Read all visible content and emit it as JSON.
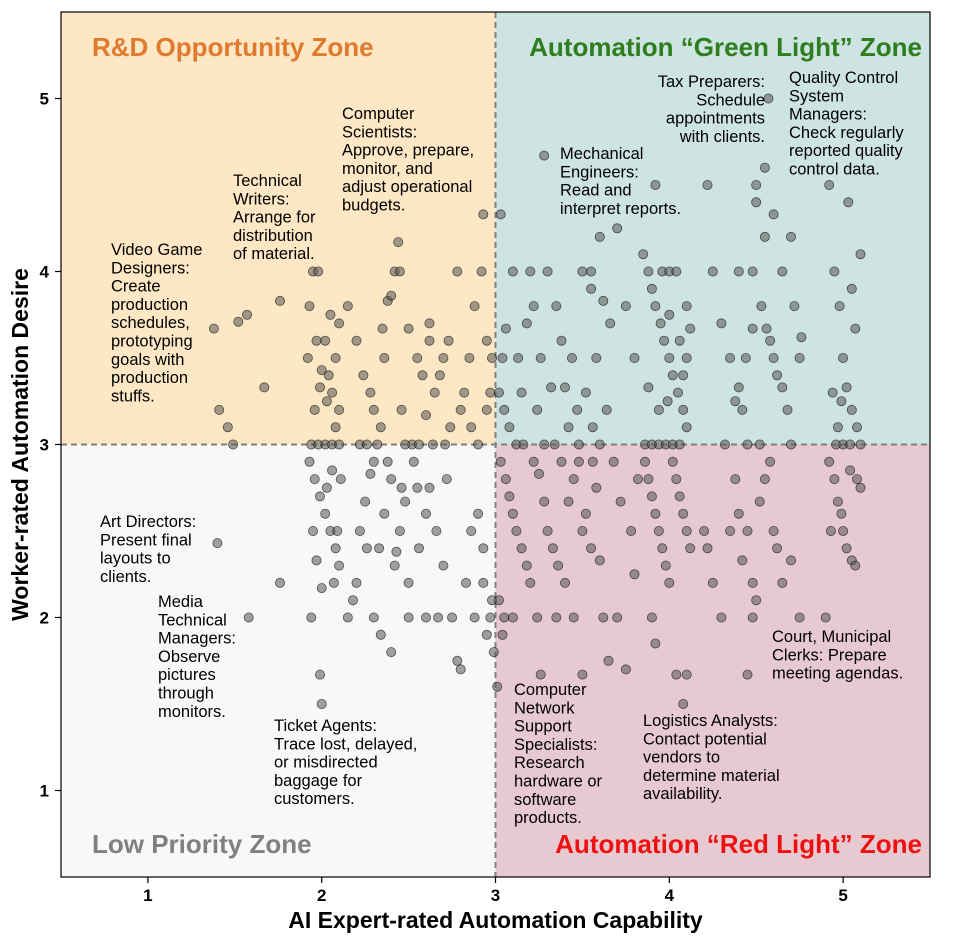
{
  "chart_data": {
    "type": "scatter",
    "xlabel": "AI Expert-rated Automation Capability",
    "ylabel": "Worker-rated Automation Desire",
    "xlim": [
      0.5,
      5.5
    ],
    "ylim": [
      0.5,
      5.5
    ],
    "xticks": [
      "1",
      "2",
      "3",
      "4",
      "5"
    ],
    "yticks": [
      "1",
      "2",
      "3",
      "4",
      "5"
    ],
    "threshold_x": 3,
    "threshold_y": 3,
    "grid": false,
    "legend": "none",
    "marker_color": "#555555",
    "zones": [
      {
        "id": "rd",
        "label": "R&D Opportunity Zone",
        "quadrant": "top-left",
        "fill": "#fde7c4",
        "text_color": "#e07a2e"
      },
      {
        "id": "green",
        "label": "Automation “Green Light” Zone",
        "quadrant": "top-right",
        "fill": "#cde4e2",
        "text_color": "#2e7d1e"
      },
      {
        "id": "low",
        "label": "Low Priority Zone",
        "quadrant": "bottom-left",
        "fill": "#f8f8f8",
        "text_color": "#808080"
      },
      {
        "id": "red",
        "label": "Automation “Red Light” Zone",
        "quadrant": "bottom-right",
        "fill": "#e7cad1",
        "text_color": "#ee1111"
      }
    ],
    "annotations": [
      {
        "id": "video-game",
        "lines": [
          "Video Game",
          "Designers:",
          "Create",
          "production",
          "schedules,",
          "prototyping",
          "goals with",
          "production",
          "stuffs."
        ]
      },
      {
        "id": "tech-writers",
        "lines": [
          "Technical",
          "Writers:",
          "Arrange for",
          "distribution",
          "of material."
        ]
      },
      {
        "id": "comp-sci",
        "lines": [
          "Computer",
          "Scientists:",
          "Approve, prepare,",
          "monitor, and",
          "adjust operational",
          "budgets."
        ]
      },
      {
        "id": "mech-eng",
        "lines": [
          "Mechanical",
          "Engineers:",
          "Read and",
          "interpret reports."
        ]
      },
      {
        "id": "tax-prep",
        "lines": [
          "Tax Preparers:",
          "Schedule",
          "appointments",
          "with clients."
        ]
      },
      {
        "id": "qc-managers",
        "lines": [
          "Quality Control",
          "System",
          "Managers:",
          "Check regularly",
          "reported quality",
          "control data."
        ]
      },
      {
        "id": "art-directors",
        "lines": [
          "Art Directors:",
          "Present final",
          "layouts to",
          "clients."
        ]
      },
      {
        "id": "media-tech",
        "lines": [
          "Media",
          "Technical",
          "Managers:",
          "Observe",
          "pictures",
          "through",
          "monitors."
        ]
      },
      {
        "id": "ticket-agents",
        "lines": [
          "Ticket Agents:",
          "Trace lost, delayed,",
          "or misdirected",
          "baggage for",
          "customers."
        ]
      },
      {
        "id": "network-support",
        "lines": [
          "Computer",
          "Network",
          "Support",
          "Specialists:",
          "Research",
          "hardware or",
          "software",
          "products."
        ]
      },
      {
        "id": "logistics",
        "lines": [
          "Logistics Analysts:",
          "Contact potential",
          "vendors to",
          "determine material",
          "availability."
        ]
      },
      {
        "id": "court-clerks",
        "lines": [
          "Court, Municipal",
          "Clerks: Prepare",
          "meeting agendas."
        ]
      }
    ],
    "points": [
      [
        1.38,
        3.67
      ],
      [
        1.41,
        3.2
      ],
      [
        1.46,
        3.1
      ],
      [
        1.49,
        3.0
      ],
      [
        1.52,
        3.71
      ],
      [
        1.57,
        3.75
      ],
      [
        1.67,
        3.33
      ],
      [
        1.76,
        3.83
      ],
      [
        1.4,
        2.43
      ],
      [
        1.58,
        2.0
      ],
      [
        1.76,
        2.2
      ],
      [
        1.99,
        1.67
      ],
      [
        2.0,
        1.5
      ],
      [
        1.93,
        3.8
      ],
      [
        1.95,
        4.0
      ],
      [
        1.98,
        4.0
      ],
      [
        1.97,
        3.6
      ],
      [
        2.02,
        3.6
      ],
      [
        2.05,
        3.75
      ],
      [
        2.08,
        3.5
      ],
      [
        2.1,
        3.7
      ],
      [
        2.04,
        3.4
      ],
      [
        2.06,
        3.3
      ],
      [
        1.96,
        3.2
      ],
      [
        2.1,
        3.2
      ],
      [
        1.94,
        3.0
      ],
      [
        1.98,
        3.0
      ],
      [
        2.02,
        3.0
      ],
      [
        2.06,
        3.0
      ],
      [
        2.1,
        3.0
      ],
      [
        2.0,
        3.43
      ],
      [
        1.92,
        3.5
      ],
      [
        2.03,
        3.25
      ],
      [
        1.99,
        3.33
      ],
      [
        2.08,
        3.1
      ],
      [
        2.2,
        3.6
      ],
      [
        2.24,
        3.4
      ],
      [
        2.28,
        3.3
      ],
      [
        2.32,
        3.0
      ],
      [
        2.35,
        3.67
      ],
      [
        2.38,
        3.83
      ],
      [
        2.4,
        3.86
      ],
      [
        2.42,
        4.0
      ],
      [
        2.45,
        4.0
      ],
      [
        2.44,
        4.17
      ],
      [
        2.5,
        3.67
      ],
      [
        2.55,
        3.5
      ],
      [
        2.58,
        3.4
      ],
      [
        2.62,
        3.7
      ],
      [
        2.65,
        3.3
      ],
      [
        2.7,
        3.5
      ],
      [
        2.73,
        3.6
      ],
      [
        2.78,
        4.0
      ],
      [
        2.82,
        3.3
      ],
      [
        2.86,
        3.1
      ],
      [
        2.9,
        3.0
      ],
      [
        2.22,
        3.0
      ],
      [
        2.26,
        3.0
      ],
      [
        2.3,
        3.2
      ],
      [
        2.36,
        3.5
      ],
      [
        2.46,
        3.2
      ],
      [
        2.52,
        3.0
      ],
      [
        2.6,
        3.17
      ],
      [
        2.64,
        3.0
      ],
      [
        2.68,
        3.4
      ],
      [
        2.74,
        3.1
      ],
      [
        2.8,
        3.2
      ],
      [
        2.85,
        3.5
      ],
      [
        2.88,
        3.8
      ],
      [
        2.92,
        4.0
      ],
      [
        2.95,
        3.6
      ],
      [
        2.97,
        3.3
      ],
      [
        2.93,
        4.33
      ],
      [
        2.95,
        3.2
      ],
      [
        2.98,
        3.5
      ],
      [
        2.15,
        3.8
      ],
      [
        2.48,
        3.0
      ],
      [
        2.56,
        3.0
      ],
      [
        2.62,
        3.6
      ],
      [
        2.71,
        3.0
      ],
      [
        2.34,
        3.1
      ],
      [
        1.93,
        2.9
      ],
      [
        1.96,
        2.8
      ],
      [
        1.99,
        2.7
      ],
      [
        2.02,
        2.6
      ],
      [
        2.05,
        2.5
      ],
      [
        2.08,
        2.4
      ],
      [
        2.1,
        2.3
      ],
      [
        1.95,
        2.5
      ],
      [
        1.97,
        2.33
      ],
      [
        2.03,
        2.75
      ],
      [
        2.07,
        2.2
      ],
      [
        1.94,
        2.0
      ],
      [
        2.0,
        2.17
      ],
      [
        2.06,
        2.85
      ],
      [
        2.09,
        2.5
      ],
      [
        2.11,
        2.8
      ],
      [
        2.15,
        2.0
      ],
      [
        2.2,
        2.2
      ],
      [
        2.22,
        2.5
      ],
      [
        2.25,
        2.67
      ],
      [
        2.28,
        2.83
      ],
      [
        2.3,
        2.9
      ],
      [
        2.33,
        2.4
      ],
      [
        2.36,
        2.6
      ],
      [
        2.4,
        2.8
      ],
      [
        2.42,
        2.3
      ],
      [
        2.45,
        2.5
      ],
      [
        2.48,
        2.67
      ],
      [
        2.5,
        2.2
      ],
      [
        2.53,
        2.9
      ],
      [
        2.56,
        2.4
      ],
      [
        2.6,
        2.6
      ],
      [
        2.62,
        2.75
      ],
      [
        2.66,
        2.5
      ],
      [
        2.7,
        2.3
      ],
      [
        2.72,
        2.8
      ],
      [
        2.75,
        2.0
      ],
      [
        2.78,
        1.75
      ],
      [
        2.8,
        1.7
      ],
      [
        2.83,
        2.2
      ],
      [
        2.86,
        2.5
      ],
      [
        2.9,
        2.6
      ],
      [
        2.93,
        2.4
      ],
      [
        2.95,
        1.9
      ],
      [
        2.97,
        2.0
      ],
      [
        2.98,
        2.1
      ],
      [
        2.99,
        1.8
      ],
      [
        2.4,
        1.8
      ],
      [
        2.3,
        2.0
      ],
      [
        2.5,
        2.0
      ],
      [
        2.6,
        2.0
      ],
      [
        2.46,
        2.75
      ],
      [
        2.38,
        2.9
      ],
      [
        2.26,
        2.4
      ],
      [
        2.18,
        2.1
      ],
      [
        2.34,
        1.9
      ],
      [
        2.55,
        2.75
      ],
      [
        2.67,
        2.0
      ],
      [
        2.88,
        2.0
      ],
      [
        2.93,
        2.2
      ],
      [
        2.43,
        2.38
      ],
      [
        3.03,
        4.33
      ],
      [
        3.06,
        3.67
      ],
      [
        3.1,
        4.0
      ],
      [
        3.13,
        3.5
      ],
      [
        3.15,
        3.3
      ],
      [
        3.18,
        3.7
      ],
      [
        3.2,
        4.0
      ],
      [
        3.22,
        3.8
      ],
      [
        3.26,
        3.5
      ],
      [
        3.3,
        4.0
      ],
      [
        3.32,
        3.33
      ],
      [
        3.35,
        3.8
      ],
      [
        3.38,
        3.6
      ],
      [
        3.4,
        3.33
      ],
      [
        3.44,
        3.5
      ],
      [
        3.47,
        3.2
      ],
      [
        3.5,
        4.0
      ],
      [
        3.55,
        3.9
      ],
      [
        3.58,
        3.5
      ],
      [
        3.62,
        3.83
      ],
      [
        3.66,
        3.7
      ],
      [
        3.7,
        4.25
      ],
      [
        3.75,
        3.8
      ],
      [
        3.8,
        3.5
      ],
      [
        3.05,
        3.2
      ],
      [
        3.08,
        3.1
      ],
      [
        3.12,
        3.0
      ],
      [
        3.16,
        3.0
      ],
      [
        3.24,
        3.2
      ],
      [
        3.28,
        3.0
      ],
      [
        3.34,
        3.0
      ],
      [
        3.42,
        3.1
      ],
      [
        3.48,
        3.0
      ],
      [
        3.52,
        3.3
      ],
      [
        3.56,
        3.1
      ],
      [
        3.6,
        3.0
      ],
      [
        3.64,
        3.2
      ],
      [
        3.28,
        4.67
      ],
      [
        3.6,
        4.2
      ],
      [
        3.55,
        4.0
      ],
      [
        3.02,
        3.3
      ],
      [
        3.04,
        3.5
      ],
      [
        3.85,
        4.1
      ],
      [
        3.88,
        4.0
      ],
      [
        3.9,
        3.9
      ],
      [
        3.92,
        3.8
      ],
      [
        3.95,
        3.7
      ],
      [
        3.97,
        3.6
      ],
      [
        4.0,
        3.5
      ],
      [
        4.02,
        3.4
      ],
      [
        4.05,
        3.3
      ],
      [
        4.08,
        3.2
      ],
      [
        4.1,
        3.1
      ],
      [
        3.86,
        3.0
      ],
      [
        3.9,
        3.0
      ],
      [
        3.94,
        3.0
      ],
      [
        3.98,
        3.0
      ],
      [
        4.02,
        3.0
      ],
      [
        4.06,
        3.0
      ],
      [
        4.1,
        3.5
      ],
      [
        4.12,
        3.67
      ],
      [
        3.96,
        4.0
      ],
      [
        4.0,
        4.0
      ],
      [
        4.04,
        4.0
      ],
      [
        3.92,
        4.5
      ],
      [
        3.88,
        3.33
      ],
      [
        4.0,
        3.75
      ],
      [
        4.06,
        3.6
      ],
      [
        4.1,
        3.8
      ],
      [
        3.99,
        3.25
      ],
      [
        4.08,
        3.4
      ],
      [
        3.94,
        3.2
      ],
      [
        4.22,
        4.5
      ],
      [
        4.25,
        4.0
      ],
      [
        4.3,
        3.7
      ],
      [
        4.35,
        3.5
      ],
      [
        4.4,
        3.33
      ],
      [
        4.42,
        3.2
      ],
      [
        4.45,
        3.0
      ],
      [
        4.48,
        3.67
      ],
      [
        4.5,
        4.5
      ],
      [
        4.53,
        3.8
      ],
      [
        4.56,
        3.67
      ],
      [
        4.58,
        3.6
      ],
      [
        4.6,
        3.5
      ],
      [
        4.62,
        3.4
      ],
      [
        4.65,
        3.33
      ],
      [
        4.68,
        3.2
      ],
      [
        4.7,
        3.0
      ],
      [
        4.72,
        3.8
      ],
      [
        4.75,
        3.5
      ],
      [
        4.57,
        5.0
      ],
      [
        4.55,
        4.6
      ],
      [
        4.5,
        4.4
      ],
      [
        4.55,
        4.2
      ],
      [
        4.6,
        4.33
      ],
      [
        4.65,
        4.0
      ],
      [
        4.7,
        4.2
      ],
      [
        4.76,
        3.62
      ],
      [
        4.44,
        3.5
      ],
      [
        4.38,
        3.25
      ],
      [
        4.32,
        3.0
      ],
      [
        4.52,
        3.0
      ],
      [
        4.48,
        4.0
      ],
      [
        4.4,
        4.0
      ],
      [
        4.92,
        4.5
      ],
      [
        4.95,
        4.0
      ],
      [
        4.98,
        3.8
      ],
      [
        5.0,
        3.5
      ],
      [
        5.02,
        3.33
      ],
      [
        5.05,
        3.2
      ],
      [
        5.08,
        3.1
      ],
      [
        5.1,
        3.0
      ],
      [
        4.94,
        3.3
      ],
      [
        4.97,
        3.1
      ],
      [
        5.03,
        4.4
      ],
      [
        5.05,
        3.9
      ],
      [
        5.07,
        3.67
      ],
      [
        5.1,
        4.1
      ],
      [
        4.96,
        3.0
      ],
      [
        5.0,
        3.0
      ],
      [
        5.04,
        3.0
      ],
      [
        4.99,
        3.25
      ],
      [
        3.03,
        2.9
      ],
      [
        3.06,
        2.8
      ],
      [
        3.08,
        2.7
      ],
      [
        3.1,
        2.6
      ],
      [
        3.12,
        2.5
      ],
      [
        3.15,
        2.4
      ],
      [
        3.18,
        2.3
      ],
      [
        3.2,
        2.2
      ],
      [
        3.05,
        2.0
      ],
      [
        3.02,
        2.1
      ],
      [
        3.04,
        1.9
      ],
      [
        3.01,
        1.6
      ],
      [
        3.1,
        2.0
      ],
      [
        3.25,
        2.83
      ],
      [
        3.28,
        2.67
      ],
      [
        3.3,
        2.5
      ],
      [
        3.33,
        2.4
      ],
      [
        3.36,
        2.3
      ],
      [
        3.4,
        2.2
      ],
      [
        3.42,
        2.67
      ],
      [
        3.45,
        2.8
      ],
      [
        3.5,
        2.5
      ],
      [
        3.52,
        2.6
      ],
      [
        3.55,
        2.4
      ],
      [
        3.58,
        2.75
      ],
      [
        3.6,
        2.33
      ],
      [
        3.62,
        2.0
      ],
      [
        3.65,
        1.75
      ],
      [
        3.7,
        2.0
      ],
      [
        3.75,
        1.7
      ],
      [
        3.8,
        2.25
      ],
      [
        3.24,
        2.0
      ],
      [
        3.26,
        1.67
      ],
      [
        3.35,
        2.0
      ],
      [
        3.45,
        2.0
      ],
      [
        3.5,
        1.67
      ],
      [
        3.22,
        2.9
      ],
      [
        3.38,
        2.9
      ],
      [
        3.48,
        2.9
      ],
      [
        3.56,
        2.9
      ],
      [
        3.68,
        2.9
      ],
      [
        3.72,
        2.67
      ],
      [
        3.78,
        2.5
      ],
      [
        3.82,
        2.8
      ],
      [
        3.86,
        2.9
      ],
      [
        3.88,
        2.8
      ],
      [
        3.9,
        2.7
      ],
      [
        3.92,
        2.6
      ],
      [
        3.94,
        2.5
      ],
      [
        3.96,
        2.4
      ],
      [
        3.98,
        2.3
      ],
      [
        4.0,
        2.2
      ],
      [
        4.02,
        2.9
      ],
      [
        4.04,
        2.8
      ],
      [
        4.06,
        2.7
      ],
      [
        4.08,
        2.6
      ],
      [
        4.1,
        2.5
      ],
      [
        4.12,
        2.4
      ],
      [
        3.9,
        2.0
      ],
      [
        3.92,
        1.85
      ],
      [
        4.04,
        1.67
      ],
      [
        4.08,
        1.5
      ],
      [
        4.1,
        1.67
      ],
      [
        4.2,
        2.5
      ],
      [
        4.22,
        2.4
      ],
      [
        4.25,
        2.2
      ],
      [
        4.3,
        2.0
      ],
      [
        4.35,
        2.5
      ],
      [
        4.38,
        2.8
      ],
      [
        4.4,
        2.6
      ],
      [
        4.42,
        2.33
      ],
      [
        4.45,
        2.5
      ],
      [
        4.48,
        2.2
      ],
      [
        4.5,
        2.1
      ],
      [
        4.52,
        2.67
      ],
      [
        4.55,
        2.8
      ],
      [
        4.58,
        2.9
      ],
      [
        4.6,
        2.5
      ],
      [
        4.62,
        2.4
      ],
      [
        4.65,
        2.2
      ],
      [
        4.7,
        2.33
      ],
      [
        4.75,
        2.0
      ],
      [
        4.45,
        1.67
      ],
      [
        4.48,
        2.0
      ],
      [
        4.92,
        2.9
      ],
      [
        4.95,
        2.8
      ],
      [
        4.97,
        2.67
      ],
      [
        5.0,
        2.5
      ],
      [
        5.02,
        2.4
      ],
      [
        5.05,
        2.33
      ],
      [
        5.08,
        2.8
      ],
      [
        5.1,
        2.75
      ],
      [
        4.9,
        2.0
      ],
      [
        4.93,
        2.5
      ],
      [
        5.04,
        2.85
      ],
      [
        5.07,
        2.3
      ],
      [
        4.99,
        2.6
      ]
    ]
  }
}
